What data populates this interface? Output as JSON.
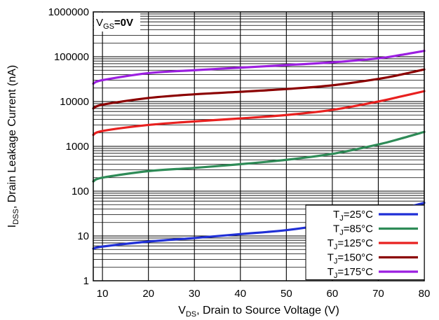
{
  "chart_data": {
    "type": "line",
    "y_scale": "log",
    "xlim": [
      8,
      80
    ],
    "ylim": [
      1,
      1000000
    ],
    "grid": true,
    "x_ticks": [
      10,
      20,
      30,
      40,
      50,
      60,
      70,
      80
    ],
    "y_ticks": [
      1,
      10,
      100,
      1000,
      10000,
      100000,
      1000000
    ],
    "x_tick_labels": [
      "10",
      "20",
      "30",
      "40",
      "50",
      "60",
      "70",
      "80"
    ],
    "y_tick_labels": [
      "1",
      "10",
      "100",
      "1000",
      "10000",
      "100000",
      "1000000"
    ],
    "xlabel": {
      "main": "V",
      "sub": "DS",
      "rest": ", Drain to Source Voltage (V)"
    },
    "ylabel": {
      "main": "I",
      "sub": "DSS",
      "rest": ", Drain Leakage Current (nA)"
    },
    "annotation": {
      "main": "V",
      "sub": "GS",
      "rest": "=0V"
    },
    "legend_position": "bottom-right",
    "series": [
      {
        "name": "TJ=25°C",
        "label": {
          "main": "T",
          "sub": "J",
          "rest": "=25°C"
        },
        "color": "#1f2fd6",
        "x": [
          8,
          10,
          20,
          30,
          40,
          50,
          60,
          70,
          75,
          80
        ],
        "y": [
          5.2,
          5.8,
          7.5,
          9,
          11,
          13.5,
          19,
          30,
          40,
          55
        ]
      },
      {
        "name": "TJ=85°C",
        "label": {
          "main": "T",
          "sub": "J",
          "rest": "=85°C"
        },
        "color": "#2e8b57",
        "x": [
          8,
          10,
          20,
          30,
          40,
          50,
          60,
          70,
          75,
          80
        ],
        "y": [
          165,
          200,
          280,
          330,
          400,
          500,
          680,
          1100,
          1500,
          2100
        ]
      },
      {
        "name": "TJ=125°C",
        "label": {
          "main": "T",
          "sub": "J",
          "rest": "=125°C"
        },
        "color": "#e8201f",
        "x": [
          8,
          10,
          20,
          30,
          40,
          50,
          60,
          70,
          75,
          80
        ],
        "y": [
          1800,
          2200,
          3000,
          3600,
          4200,
          5000,
          6500,
          10000,
          13000,
          17000
        ]
      },
      {
        "name": "TJ=150°C",
        "label": {
          "main": "T",
          "sub": "J",
          "rest": "=150°C"
        },
        "color": "#8b0000",
        "x": [
          8,
          10,
          20,
          30,
          40,
          50,
          60,
          70,
          75,
          80
        ],
        "y": [
          7000,
          8500,
          12000,
          14500,
          16500,
          19000,
          23000,
          32000,
          40000,
          52000
        ]
      },
      {
        "name": "TJ=175°C",
        "label": {
          "main": "T",
          "sub": "J",
          "rest": "=175°C"
        },
        "color": "#9b1fe0",
        "x": [
          8,
          10,
          20,
          30,
          40,
          50,
          60,
          70,
          75,
          80
        ],
        "y": [
          25000,
          30000,
          43000,
          50000,
          57000,
          65000,
          75000,
          92000,
          110000,
          135000
        ]
      }
    ]
  }
}
